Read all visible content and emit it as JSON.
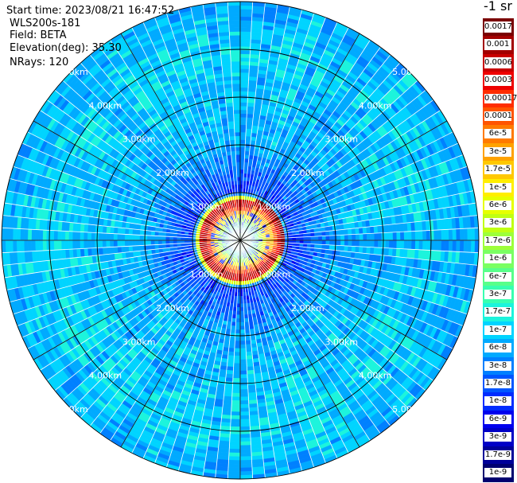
{
  "info": {
    "start_time": "Start time: 2023/08/21 16:47:52",
    "station": "WLS200s-181",
    "field": "Field: BETA",
    "elevation": "Elevation(deg): 35.30",
    "nrays": "NRays: 120"
  },
  "colorbar": {
    "title": "-1 sr",
    "entries": [
      {
        "label": "0.0017",
        "color": "#7a0000"
      },
      {
        "label": "0.001",
        "color": "#a30000"
      },
      {
        "label": "0.0006",
        "color": "#c80000"
      },
      {
        "label": "0.0003",
        "color": "#ee0000"
      },
      {
        "label": "0.00017",
        "color": "#ff2d00"
      },
      {
        "label": "0.0001",
        "color": "#ff5400"
      },
      {
        "label": "6e-5",
        "color": "#ff7a00"
      },
      {
        "label": "3e-5",
        "color": "#ffa200"
      },
      {
        "label": "1.7e-5",
        "color": "#ffc800"
      },
      {
        "label": "1e-5",
        "color": "#ffee00"
      },
      {
        "label": "6e-6",
        "color": "#e6ff00"
      },
      {
        "label": "3e-6",
        "color": "#c0ff12"
      },
      {
        "label": "1.7e-6",
        "color": "#9dff3a"
      },
      {
        "label": "1e-6",
        "color": "#7aff62"
      },
      {
        "label": "6e-7",
        "color": "#58ff8a"
      },
      {
        "label": "3e-7",
        "color": "#38ffb0"
      },
      {
        "label": "1.7e-7",
        "color": "#1cf4dc"
      },
      {
        "label": "1e-7",
        "color": "#00d4ff"
      },
      {
        "label": "6e-8",
        "color": "#00aaff"
      },
      {
        "label": "3e-8",
        "color": "#0080ff"
      },
      {
        "label": "1.7e-8",
        "color": "#0056ff"
      },
      {
        "label": "1e-8",
        "color": "#002cff"
      },
      {
        "label": "6e-9",
        "color": "#0000ee"
      },
      {
        "label": "3e-9",
        "color": "#0000c6"
      },
      {
        "label": "1.7e-9",
        "color": "#000099"
      },
      {
        "label": "1e-9",
        "color": "#000070"
      }
    ]
  },
  "chart_data": {
    "type": "heatmap",
    "projection": "polar-ppi",
    "field": "BETA",
    "elevation_deg": 35.3,
    "n_rays": 120,
    "range_max_km": 5.0,
    "range_rings_km": [
      1,
      2,
      3,
      4,
      5
    ],
    "azimuth_spokes_deg": [
      0,
      30,
      60,
      90,
      120,
      150,
      180,
      210,
      240,
      270,
      300,
      330
    ],
    "ring_labels": [
      {
        "text": "1.00km",
        "range_km": 1,
        "bearing_deg": [
          315,
          45,
          135,
          225
        ]
      },
      {
        "text": "2.00km",
        "range_km": 2,
        "bearing_deg": [
          315,
          45,
          135,
          225
        ]
      },
      {
        "text": "3.00km",
        "range_km": 3,
        "bearing_deg": [
          315,
          45,
          135,
          225
        ]
      },
      {
        "text": "4.00km",
        "range_km": 4,
        "bearing_deg": [
          315,
          45,
          135,
          225
        ]
      },
      {
        "text": "5.00km",
        "range_km": 5,
        "bearing_deg": [
          315,
          45,
          135,
          225
        ]
      }
    ],
    "colorscale": "log",
    "value_range": [
      "1e-9",
      "0.0017"
    ],
    "approx_profile_by_range": [
      {
        "range_km": 0.1,
        "level": "1e-6"
      },
      {
        "range_km": 0.3,
        "level": "1.7e-7"
      },
      {
        "range_km": 0.7,
        "level": "0.0003"
      },
      {
        "range_km": 0.8,
        "level": "0.0017"
      },
      {
        "range_km": 1.0,
        "level": "1e-8"
      },
      {
        "range_km": 2.0,
        "level": "6e-8"
      },
      {
        "range_km": 4.0,
        "level": "1e-7"
      },
      {
        "range_km": 5.0,
        "level": "6e-8"
      }
    ]
  }
}
